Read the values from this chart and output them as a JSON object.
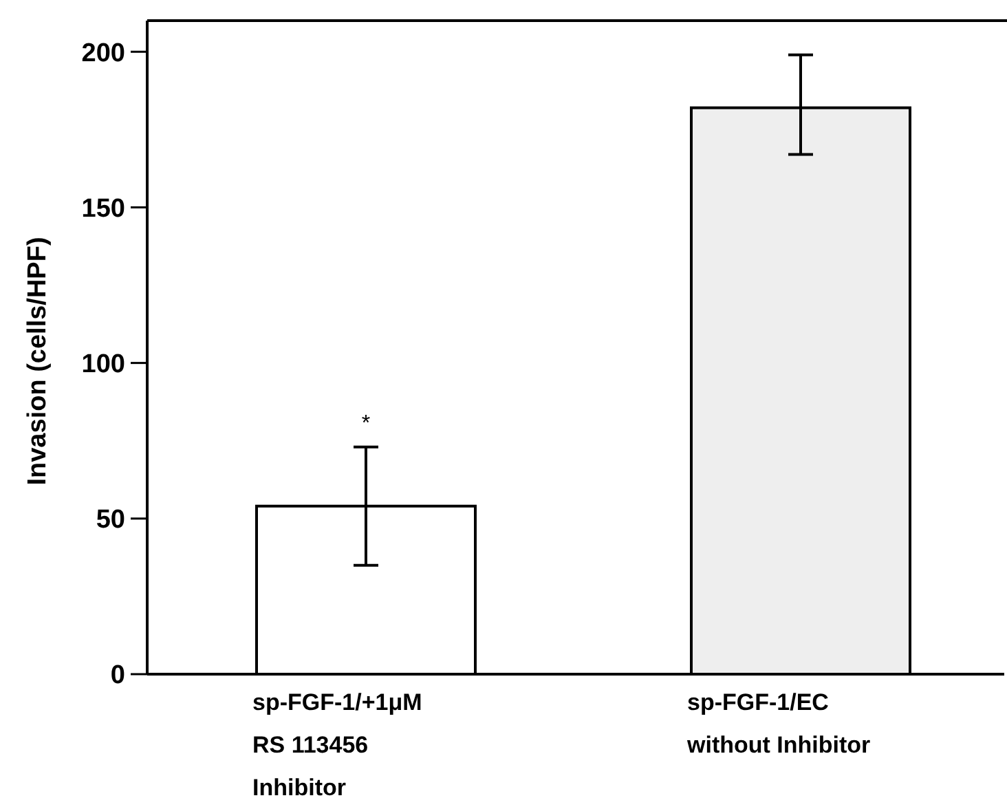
{
  "chart_data": {
    "type": "bar",
    "ylabel": "Invasion (cells/HPF)",
    "categories": [
      "sp-FGF-1/+1μM\nRS 113456\nInhibitor",
      "sp-FGF-1/EC\nwithout Inhibitor"
    ],
    "values": [
      54,
      182
    ],
    "colors": [
      "#ffffff",
      "#eeeeee"
    ],
    "errors": [
      [
        35,
        73
      ],
      [
        167,
        199
      ]
    ],
    "ylim": [
      0,
      210
    ],
    "yticks": [
      0,
      50,
      100,
      150,
      200
    ],
    "annotations": [
      "*"
    ]
  }
}
